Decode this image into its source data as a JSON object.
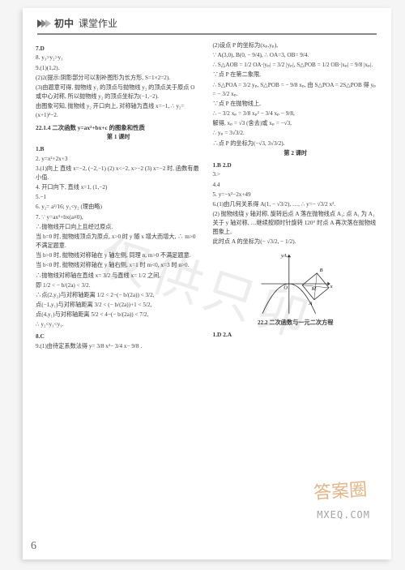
{
  "header": {
    "bold": "初中",
    "label": "课堂作业"
  },
  "pagenum": "6",
  "watermark": "仅供只卯",
  "brand": {
    "name": "答案圈",
    "url": "MXEQ.COM"
  },
  "left": [
    {
      "t": "7.D",
      "b": true
    },
    {
      "t": "8. y₃>y₂>y₁"
    },
    {
      "t": "9.(1)(1,2)."
    },
    {
      "t": "(2)2(提示:阴影部分可以割补图形为长方形, S=1×2=2)."
    },
    {
      "t": "(3)由题意可得, 抛物线 y₁ 的顶点与抛物线 y₂ 的顶点关于原点 O 或中心对称, 所以抛物线 y₂ 的顶点坐标为(−1,−2)."
    },
    {
      "t": "由图象可知, 抛物线 y₂ 开口向上, 对称轴为直线 x=−1, ∴ y₂=(x+1)²−2."
    },
    {
      "t": "22.1.4  二次函数 y=ax²+bx+c 的图象和性质",
      "b": true
    },
    {
      "t": "第 1 课时",
      "b": true,
      "c": true
    },
    {
      "t": "1.B",
      "b": true
    },
    {
      "t": "2. y=x²+2x+3"
    },
    {
      "t": "3.(1)向上  直线 x=−2, (−2,−1)  (2) x<−2, x>−2  (3) x=−2 时, 函数有最小值."
    },
    {
      "t": "4. 开口向下, 直线 x=1, (1,−2)"
    },
    {
      "t": "5.−1"
    },
    {
      "t": "6. y₂= a²/16; y₁<y₂ (理由略)"
    },
    {
      "t": "7. ∵ y=ax²+bx(a≠0),"
    },
    {
      "t": "∴抛物线开口向上且经过原点."
    },
    {
      "t": "当 b=0 时, 抛物线顶点为原点, x>0 时 y 随 x 增大而增大, ∴ m>0 不满足题意."
    },
    {
      "t": "当 b>0 时, 抛物线对称轴在 y 轴左侧, 同理 n, m>0 不满足题意."
    },
    {
      "t": "当 b<0 时, 抛物线对称轴在 y 轴右侧, x=1 时 m<0, x=3 时 n>0."
    },
    {
      "t": "∴抛物线对称轴在直线 x= 3/2 与直线 x= 1/2 之间,"
    },
    {
      "t": "即 1/2 < − b/(2a) < 3/2."
    },
    {
      "t": "∴点(2,y₂)与对称轴距离 1/2 < 2−(− b/(2a)) < 3/2,"
    },
    {
      "t": "点(−1,y₁)与对称轴距离 3/2 < (− b/(2a))+1 < 5/2,"
    },
    {
      "t": "点(4,y₁)与对称轴距离 5/2 < 4−(− b/(2a)) < 7/2,"
    },
    {
      "t": "∴ y₂<y₁<y₁."
    },
    {
      "t": "8.C",
      "b": true
    },
    {
      "t": "9.(1)由待定系数法得 y= 3/8 x²− 3/4 x− 9/8 ."
    }
  ],
  "right": [
    {
      "t": "(2)设点 P 的坐标为(xₚ,yₚ),"
    },
    {
      "t": "∵ A(3,0), B(0, − 9/4), ∴ OA=3, OB= 9/4."
    },
    {
      "t": "∴ S△AOB = 1/2 OA·|yₚ| = 3/2 |yₚ|, S△POB = 1/2 OB·|xₚ| = 9/8 |xₚ|."
    },
    {
      "t": "∵点 P 在第二象限,"
    },
    {
      "t": "∴ S△POA = 3/2 yₚ, S△POB = − 9/8 xₚ, 由 S△POA = 2S△POB 得 yₚ = − 3/2 xₚ."
    },
    {
      "t": "∵点 P 在抛物线上,"
    },
    {
      "t": "∴ − 3/2 xₚ = 3/8 xₚ² − 3/4 xₚ − 9/8,"
    },
    {
      "t": "解得, xₚ = √3 (舍去)或 xₚ = −√3,"
    },
    {
      "t": "∴ yₚ = 3√3/2."
    },
    {
      "t": "∴点 P 的坐标为(−√3, 3√3/2)."
    },
    {
      "t": "第 2 课时",
      "b": true,
      "c": true
    },
    {
      "t": "1.B  2.D",
      "b": true
    },
    {
      "t": "3.>"
    },
    {
      "t": "4.4"
    },
    {
      "t": "5. y=−x²−2x+49"
    },
    {
      "t": "6.(1)由几何关系得 A(1, − √3/2), …, ∴ y=− √3/2 x²."
    },
    {
      "t": "(2) 抛物线绕 y 轴对称, 旋转后点 A 落在抛物线点 A₁; 点 A₁ 为 A₁ 关于 y 轴对称, …继续按顺时针旋转 120° 时点 A 再次落在抛物线图象上,"
    },
    {
      "t": "此时点 A 的坐标为(− √3/2, − 1/2)."
    }
  ],
  "afterDiagram": [
    {
      "t": "22.2  二次函数与一元二次方程",
      "b": true,
      "c": true
    },
    {
      "t": "1.D  2.A",
      "b": true
    }
  ],
  "diagram": {
    "axis_color": "#333",
    "curve_color": "#333",
    "square_color": "#333",
    "labels": {
      "O": "O",
      "M": "M",
      "A": "A",
      "B": "B",
      "x": "x",
      "y": "yA"
    }
  }
}
